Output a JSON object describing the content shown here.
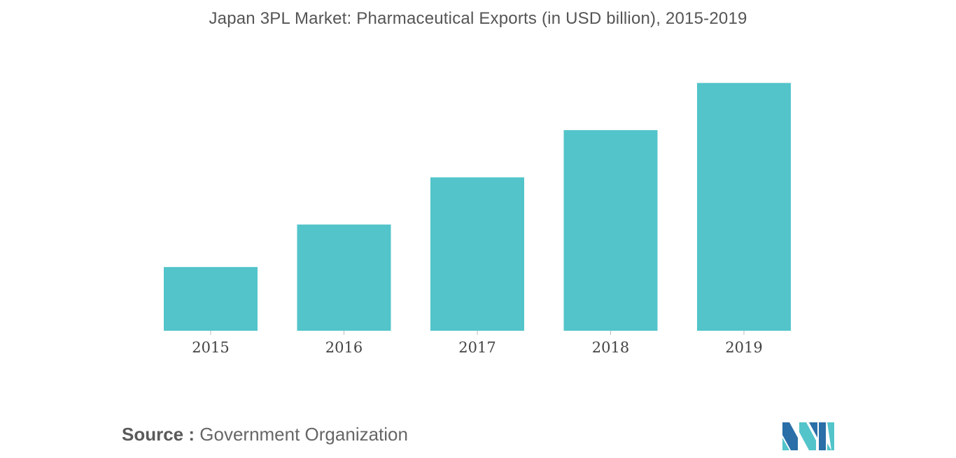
{
  "chart_data": {
    "type": "bar",
    "title": "Japan 3PL Market: Pharmaceutical Exports (in USD billion), 2015-2019",
    "categories": [
      "2015",
      "2016",
      "2017",
      "2018",
      "2019"
    ],
    "values": [
      1.35,
      2.25,
      3.25,
      4.25,
      5.25
    ],
    "xlabel": "",
    "ylabel": "",
    "ylim": [
      0,
      5.6
    ],
    "grid": false,
    "legend": "none",
    "bar_color": "#52c4ca"
  },
  "source": {
    "label": "Source :",
    "text": "Government Organization"
  },
  "logo": {
    "icon": "mordor-intelligence-logo-icon",
    "colors": [
      "#2a6fa8",
      "#52c4ca"
    ]
  }
}
